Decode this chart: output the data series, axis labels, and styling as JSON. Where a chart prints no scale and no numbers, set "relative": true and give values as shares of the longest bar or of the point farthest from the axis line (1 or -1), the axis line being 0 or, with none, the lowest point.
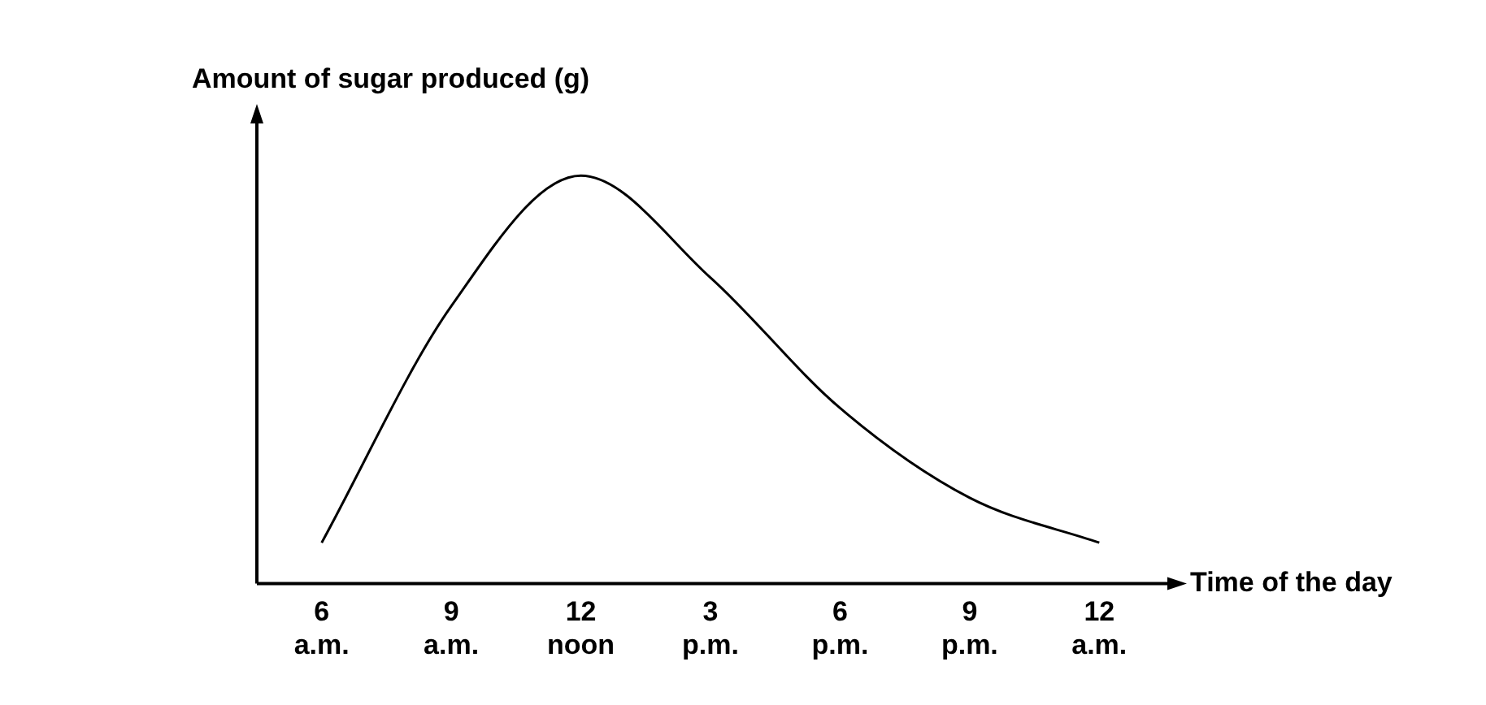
{
  "chart_data": {
    "type": "line",
    "ylabel": "Amount of sugar produced (g)",
    "xlabel": "Time of the day",
    "relative": true,
    "grid": false,
    "legend": false,
    "marker": "none",
    "line_style": "solid",
    "categories": [
      "6 a.m.",
      "9 a.m.",
      "12 noon",
      "3 p.m.",
      "6 p.m.",
      "9 p.m.",
      "12 a.m."
    ],
    "series": [
      {
        "color": "#000000",
        "values": [
          0.1,
          0.68,
          1,
          0.75,
          0.43,
          0.21,
          0.1
        ]
      }
    ]
  }
}
